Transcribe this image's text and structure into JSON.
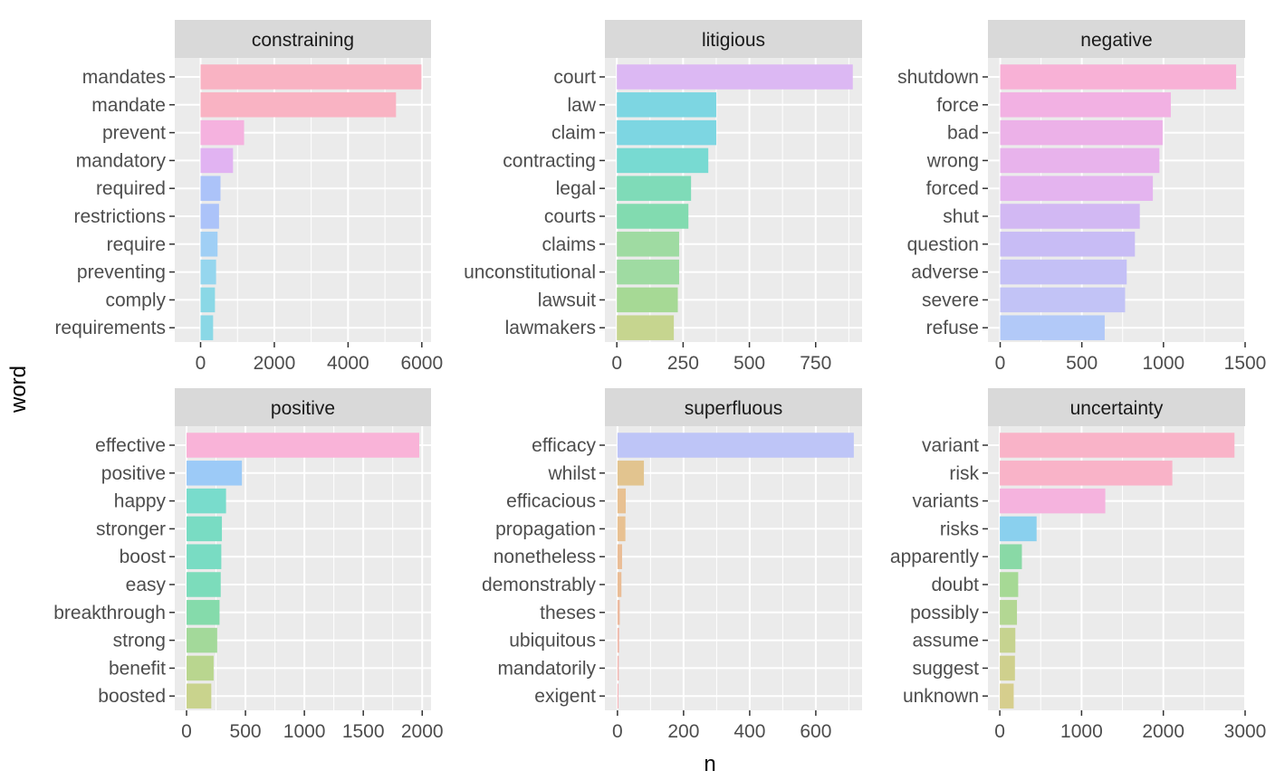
{
  "chart_data": {
    "type": "bar",
    "orientation": "horizontal",
    "facet_layout": "3 columns x 2 rows, free scales",
    "xlabel": "n",
    "ylabel": "word",
    "legend": "none",
    "grid": true,
    "panels": [
      {
        "title": "constraining",
        "categories": [
          "mandates",
          "mandate",
          "prevent",
          "mandatory",
          "required",
          "restrictions",
          "require",
          "preventing",
          "comply",
          "requirements"
        ],
        "values": [
          5990,
          5300,
          1180,
          880,
          540,
          500,
          460,
          420,
          390,
          340
        ],
        "colors": [
          "#f9b3c3",
          "#f9b3c3",
          "#f5b2df",
          "#e1b3f2",
          "#acc3f9",
          "#acc3f9",
          "#a0cff5",
          "#95d6ee",
          "#8ad8e6",
          "#8ad8e6"
        ],
        "xlim": [
          -700,
          6250
        ],
        "xticks": [
          0,
          2000,
          4000,
          6000
        ],
        "xtick_labels": [
          "0",
          "2000",
          "4000",
          "6000"
        ]
      },
      {
        "title": "litigious",
        "categories": [
          "court",
          "law",
          "claim",
          "contracting",
          "legal",
          "courts",
          "claims",
          "unconstitutional",
          "lawsuit",
          "lawmakers"
        ],
        "values": [
          890,
          375,
          375,
          345,
          280,
          270,
          235,
          235,
          230,
          215
        ],
        "colors": [
          "#dcb8f3",
          "#7dd6e2",
          "#7dd6e2",
          "#78dad2",
          "#7fdbb8",
          "#82dbb0",
          "#9fdba2",
          "#9fdba2",
          "#a6d995",
          "#c6d58f"
        ],
        "xlim": [
          -45,
          925
        ],
        "xticks": [
          0,
          250,
          500,
          750
        ],
        "xtick_labels": [
          "0",
          "250",
          "500",
          "750"
        ]
      },
      {
        "title": "negative",
        "categories": [
          "shutdown",
          "force",
          "bad",
          "wrong",
          "forced",
          "shut",
          "question",
          "adverse",
          "severe",
          "refuse"
        ],
        "values": [
          1445,
          1045,
          995,
          975,
          935,
          855,
          825,
          775,
          765,
          640
        ],
        "colors": [
          "#f8b1d6",
          "#f2b1e3",
          "#ecb1e8",
          "#e8b3ec",
          "#e4b4ef",
          "#d2b8f3",
          "#c8bcf5",
          "#c4c0f6",
          "#c2c3f6",
          "#b2c9f8"
        ],
        "xlim": [
          -75,
          1500
        ],
        "xticks": [
          0,
          500,
          1000,
          1500
        ],
        "xtick_labels": [
          "0",
          "500",
          "1000",
          "1500"
        ]
      },
      {
        "title": "positive",
        "categories": [
          "effective",
          "positive",
          "happy",
          "stronger",
          "boost",
          "easy",
          "breakthrough",
          "strong",
          "benefit",
          "boosted"
        ],
        "values": [
          1975,
          470,
          335,
          300,
          295,
          290,
          280,
          260,
          230,
          210
        ],
        "colors": [
          "#f9b3d8",
          "#9ccaf7",
          "#79dccc",
          "#79dcc3",
          "#79dcc3",
          "#7cdcbb",
          "#85dbab",
          "#a3d99a",
          "#b9d68f",
          "#c9d38d"
        ],
        "xlim": [
          -100,
          2075
        ],
        "xticks": [
          0,
          500,
          1000,
          1500,
          2000
        ],
        "xtick_labels": [
          "0",
          "500",
          "1000",
          "1500",
          "2000"
        ]
      },
      {
        "title": "superfluous",
        "categories": [
          "efficacy",
          "whilst",
          "efficacious",
          "propagation",
          "nonetheless",
          "demonstrably",
          "theses",
          "ubiquitous",
          "mandatorily",
          "exigent"
        ],
        "values": [
          715,
          80,
          25,
          24,
          14,
          12,
          7,
          5,
          4,
          3
        ],
        "colors": [
          "#bec5f7",
          "#e2c48f",
          "#e8c192",
          "#e8c192",
          "#eabd96",
          "#eabd96",
          "#ecbaa0",
          "#efb7a8",
          "#f2b5b0",
          "#f4b3b8"
        ],
        "xlim": [
          -38,
          740
        ],
        "xticks": [
          0,
          200,
          400,
          600
        ],
        "xtick_labels": [
          "0",
          "200",
          "400",
          "600"
        ]
      },
      {
        "title": "uncertainty",
        "categories": [
          "variant",
          "risk",
          "variants",
          "risks",
          "apparently",
          "doubt",
          "possibly",
          "assume",
          "suggest",
          "unknown"
        ],
        "values": [
          2870,
          2110,
          1290,
          450,
          270,
          225,
          210,
          190,
          185,
          170
        ],
        "colors": [
          "#f9b3c8",
          "#f9b3c8",
          "#f5b3de",
          "#8ad0ee",
          "#89d9a6",
          "#a6d995",
          "#b3d793",
          "#c6d38f",
          "#cfd08d",
          "#d6ce8d"
        ],
        "xlim": [
          -145,
          3000
        ],
        "xticks": [
          0,
          1000,
          2000,
          3000
        ],
        "xtick_labels": [
          "0",
          "1000",
          "2000",
          "3000"
        ]
      }
    ]
  }
}
